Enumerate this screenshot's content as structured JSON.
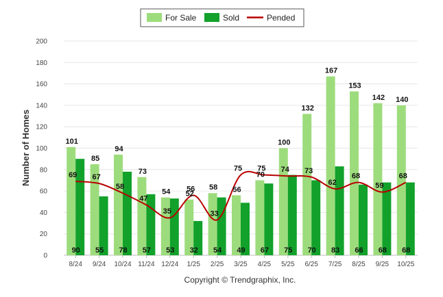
{
  "chart_data": {
    "type": "bar",
    "title": "",
    "xlabel": "",
    "ylabel": "Number of Homes",
    "ylim": [
      0,
      200
    ],
    "yticks": [
      0,
      20,
      40,
      60,
      80,
      100,
      120,
      140,
      160,
      180,
      200
    ],
    "categories": [
      "8/24",
      "9/24",
      "10/24",
      "11/24",
      "12/24",
      "1/25",
      "2/25",
      "3/25",
      "4/25",
      "5/25",
      "6/25",
      "7/25",
      "8/25",
      "9/25",
      "10/25"
    ],
    "series": [
      {
        "name": "For Sale",
        "kind": "bar",
        "values": [
          101,
          85,
          94,
          73,
          54,
          52,
          58,
          56,
          70,
          100,
          132,
          167,
          153,
          142,
          140
        ]
      },
      {
        "name": "Sold",
        "kind": "bar",
        "values": [
          90,
          55,
          78,
          57,
          53,
          32,
          54,
          49,
          67,
          75,
          70,
          83,
          66,
          68,
          68
        ]
      },
      {
        "name": "Pended",
        "kind": "line",
        "values": [
          69,
          67,
          58,
          47,
          35,
          56,
          33,
          75,
          75,
          74,
          73,
          62,
          68,
          59,
          68
        ]
      }
    ],
    "legend": {
      "position": "top-center",
      "entries": [
        "For Sale",
        "Sold",
        "Pended"
      ]
    },
    "colors": {
      "for_sale": "#9ddc7c",
      "sold": "#12a12b",
      "pended": "#b80000",
      "grid": "#e6e6e6"
    }
  },
  "footer": {
    "copyright": "Copyright © Trendgraphix, Inc."
  }
}
